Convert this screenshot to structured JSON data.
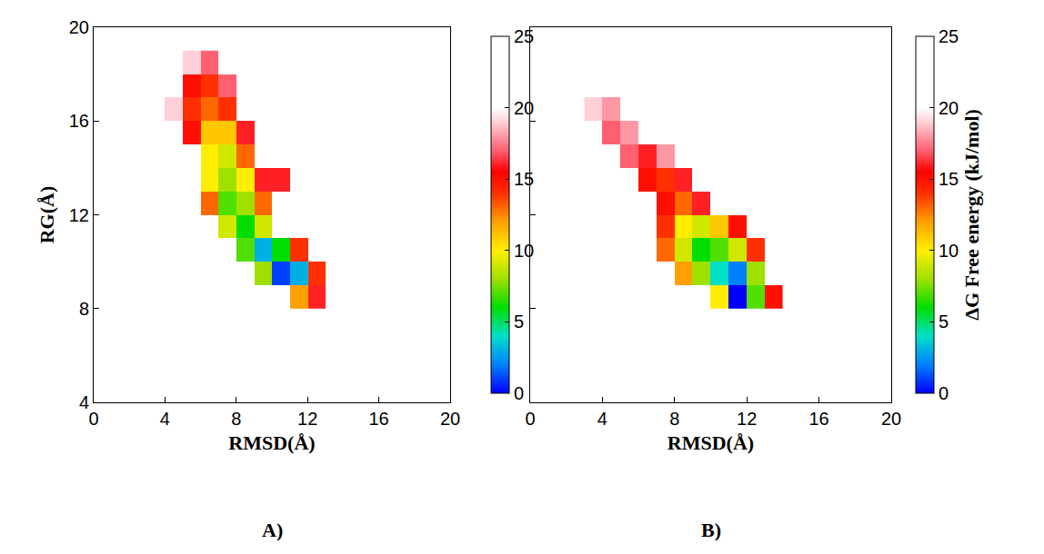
{
  "chart_data": [
    {
      "type": "heatmap",
      "label": "A)",
      "x_label": "RMSD(Å)",
      "y_label": "RG(Å)",
      "xlim": [
        0,
        20
      ],
      "ylim": [
        4,
        20
      ],
      "xticks": [
        0,
        4,
        8,
        12,
        16,
        20
      ],
      "yticks": [
        4,
        8,
        12,
        16,
        20
      ],
      "x": [
        3.5,
        4.5,
        5.5,
        6.5,
        7.5,
        8.5,
        9.5,
        10.5,
        11.5,
        12.5,
        13.5
      ],
      "y": [
        8.5,
        9.5,
        10.5,
        11.5,
        12.5,
        13.5,
        14.5,
        15.5,
        16.5,
        17.5,
        18.5
      ],
      "cells": [
        [
          null,
          null,
          null,
          null,
          null,
          null,
          null,
          null,
          12,
          16,
          null
        ],
        [
          null,
          null,
          null,
          null,
          null,
          null,
          8,
          1,
          3,
          14,
          null
        ],
        [
          null,
          null,
          null,
          null,
          null,
          7,
          3,
          6,
          14,
          null,
          null
        ],
        [
          null,
          null,
          null,
          null,
          9,
          6,
          9,
          null,
          null,
          null,
          null
        ],
        [
          null,
          null,
          null,
          13,
          7,
          8,
          13,
          null,
          null,
          null,
          null
        ],
        [
          null,
          null,
          null,
          10,
          8,
          10,
          16,
          16,
          null,
          null,
          null
        ],
        [
          null,
          null,
          null,
          10,
          9,
          13,
          null,
          null,
          null,
          null,
          null
        ],
        [
          null,
          null,
          15,
          11,
          11,
          16,
          null,
          null,
          null,
          null,
          null
        ],
        [
          null,
          19,
          14,
          13,
          14,
          null,
          null,
          null,
          null,
          null,
          null
        ],
        [
          null,
          null,
          15,
          14,
          17,
          null,
          null,
          null,
          null,
          null,
          null
        ],
        [
          null,
          null,
          19,
          17,
          null,
          null,
          null,
          null,
          null,
          null,
          null
        ]
      ],
      "colorbar_range": [
        0,
        25
      ],
      "colorbar_ticks": [
        0,
        5,
        10,
        15,
        20,
        25
      ]
    },
    {
      "type": "heatmap",
      "label": "B)",
      "x_label": "RMSD(Å)",
      "tick_labels": "x",
      "xlim": [
        0,
        20
      ],
      "ylim": [
        4,
        20
      ],
      "xticks": [
        0,
        4,
        8,
        12,
        16,
        20
      ],
      "yticks": [
        4,
        8,
        12,
        16,
        20
      ],
      "x": [
        3.5,
        4.5,
        5.5,
        6.5,
        7.5,
        8.5,
        9.5,
        10.5,
        11.5,
        12.5,
        13.5
      ],
      "y": [
        8.5,
        9.5,
        10.5,
        11.5,
        12.5,
        13.5,
        14.5,
        15.5,
        16.5,
        17.5,
        18.5
      ],
      "cells": [
        [
          null,
          null,
          null,
          null,
          null,
          null,
          null,
          10,
          0,
          7,
          15
        ],
        [
          null,
          null,
          null,
          null,
          null,
          12,
          8,
          4,
          2,
          8,
          null
        ],
        [
          null,
          null,
          null,
          null,
          13,
          9,
          6,
          7,
          9,
          14,
          null
        ],
        [
          null,
          null,
          null,
          null,
          14,
          10,
          9,
          11,
          15,
          null,
          null
        ],
        [
          null,
          null,
          null,
          null,
          15,
          13,
          16,
          null,
          null,
          null,
          null
        ],
        [
          null,
          null,
          null,
          15,
          14,
          16,
          null,
          null,
          null,
          null,
          null
        ],
        [
          null,
          null,
          17,
          16,
          18,
          null,
          null,
          null,
          null,
          null,
          null
        ],
        [
          null,
          17,
          18,
          null,
          null,
          null,
          null,
          null,
          null,
          null,
          null
        ],
        [
          19,
          18,
          null,
          null,
          null,
          null,
          null,
          null,
          null,
          null,
          null
        ],
        [
          null,
          null,
          null,
          null,
          null,
          null,
          null,
          null,
          null,
          null,
          null
        ],
        [
          null,
          null,
          null,
          null,
          null,
          null,
          null,
          null,
          null,
          null,
          null
        ]
      ],
      "colorbar_range": [
        0,
        25
      ],
      "colorbar_ticks": [
        0,
        5,
        10,
        15,
        20,
        25
      ],
      "colorbar_label": "ΔG Free energy (kJ/mol)"
    }
  ]
}
